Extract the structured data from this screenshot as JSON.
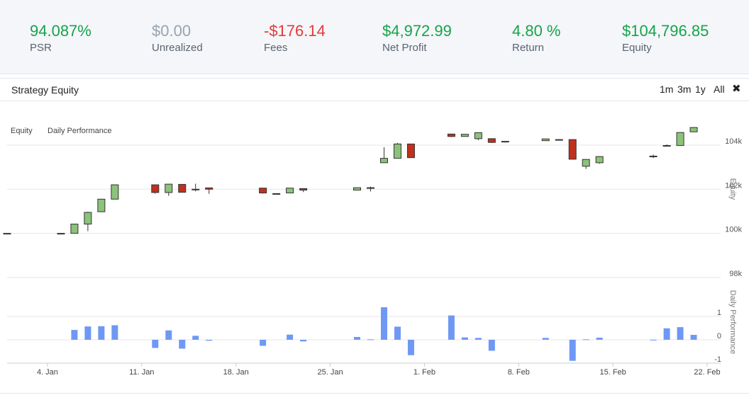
{
  "colors": {
    "positive": "#16a34a",
    "negative": "#e23b3b",
    "neutral": "#9aa3ad",
    "candle_up": "#8cc27a",
    "candle_down": "#c0301e",
    "bar": "#6f98f5"
  },
  "stats": [
    {
      "value": "94.087%",
      "label": "PSR",
      "tone": "positive"
    },
    {
      "value": "$0.00",
      "label": "Unrealized",
      "tone": "neutral"
    },
    {
      "value": "-$176.14",
      "label": "Fees",
      "tone": "negative"
    },
    {
      "value": "$4,972.99",
      "label": "Net Profit",
      "tone": "positive"
    },
    {
      "value": "4.80 %",
      "label": "Return",
      "tone": "positive"
    },
    {
      "value": "$104,796.85",
      "label": "Equity",
      "tone": "positive"
    }
  ],
  "panel": {
    "title": "Strategy Equity",
    "ranges": [
      "1m",
      "3m",
      "1y",
      "All"
    ],
    "close_icon": "close-icon",
    "close_glyph": "✖"
  },
  "chart_data": {
    "type": "candlestick+bar",
    "legend": [
      "Equity",
      "Daily Performance"
    ],
    "x_ticks": [
      "4. Jan",
      "11. Jan",
      "18. Jan",
      "25. Jan",
      "1. Feb",
      "8. Feb",
      "15. Feb",
      "22. Feb"
    ],
    "x_range_days": [
      -3,
      50
    ],
    "equity": {
      "axis_label": "Equity",
      "y_ticks": [
        "98k",
        "100k",
        "102k",
        "104k"
      ],
      "y_tick_values": [
        98000,
        100000,
        102000,
        104000
      ],
      "ylim": [
        98000,
        104800
      ],
      "candles": [
        {
          "d": -3,
          "o": 100000,
          "h": 100000,
          "l": 100000,
          "c": 100000
        },
        {
          "d": 1,
          "o": 100000,
          "h": 100000,
          "l": 100000,
          "c": 100000
        },
        {
          "d": 2,
          "o": 100000,
          "h": 100420,
          "l": 100000,
          "c": 100420
        },
        {
          "d": 3,
          "o": 100420,
          "h": 100980,
          "l": 100100,
          "c": 100950
        },
        {
          "d": 4,
          "o": 100980,
          "h": 101550,
          "l": 100980,
          "c": 101550
        },
        {
          "d": 5,
          "o": 101550,
          "h": 102200,
          "l": 101550,
          "c": 102200
        },
        {
          "d": 8,
          "o": 102200,
          "h": 102200,
          "l": 101800,
          "c": 101850
        },
        {
          "d": 9,
          "o": 101850,
          "h": 102230,
          "l": 101700,
          "c": 102230
        },
        {
          "d": 10,
          "o": 102220,
          "h": 102220,
          "l": 101850,
          "c": 101860
        },
        {
          "d": 11,
          "o": 102000,
          "h": 102250,
          "l": 101900,
          "c": 102000
        },
        {
          "d": 12,
          "o": 102060,
          "h": 102060,
          "l": 101790,
          "c": 102000
        },
        {
          "d": 16,
          "o": 102050,
          "h": 102050,
          "l": 101800,
          "c": 101830
        },
        {
          "d": 17,
          "o": 101800,
          "h": 101800,
          "l": 101780,
          "c": 101790
        },
        {
          "d": 18,
          "o": 101830,
          "h": 102050,
          "l": 101820,
          "c": 102050
        },
        {
          "d": 19,
          "o": 102030,
          "h": 102030,
          "l": 101870,
          "c": 101960
        },
        {
          "d": 23,
          "o": 101960,
          "h": 102070,
          "l": 101960,
          "c": 102070
        },
        {
          "d": 24,
          "o": 102070,
          "h": 102120,
          "l": 101900,
          "c": 102070
        },
        {
          "d": 25,
          "o": 103200,
          "h": 103900,
          "l": 103200,
          "c": 103400
        },
        {
          "d": 26,
          "o": 103400,
          "h": 104100,
          "l": 103400,
          "c": 104050
        },
        {
          "d": 27,
          "o": 104050,
          "h": 104050,
          "l": 103420,
          "c": 103430
        },
        {
          "d": 30,
          "o": 104500,
          "h": 104500,
          "l": 104360,
          "c": 104390
        },
        {
          "d": 31,
          "o": 104390,
          "h": 104490,
          "l": 104390,
          "c": 104490
        },
        {
          "d": 32,
          "o": 104290,
          "h": 104560,
          "l": 104220,
          "c": 104560
        },
        {
          "d": 33,
          "o": 104290,
          "h": 104290,
          "l": 104100,
          "c": 104120
        },
        {
          "d": 34,
          "o": 104170,
          "h": 104170,
          "l": 104120,
          "c": 104150
        },
        {
          "d": 37,
          "o": 104200,
          "h": 104280,
          "l": 104200,
          "c": 104280
        },
        {
          "d": 38,
          "o": 104250,
          "h": 104250,
          "l": 104250,
          "c": 104250
        },
        {
          "d": 39,
          "o": 104250,
          "h": 104250,
          "l": 103350,
          "c": 103360
        },
        {
          "d": 40,
          "o": 103040,
          "h": 103360,
          "l": 102920,
          "c": 103350
        },
        {
          "d": 41,
          "o": 103200,
          "h": 103490,
          "l": 103150,
          "c": 103480
        },
        {
          "d": 45,
          "o": 103500,
          "h": 103570,
          "l": 103410,
          "c": 103500
        },
        {
          "d": 46,
          "o": 103950,
          "h": 104030,
          "l": 103950,
          "c": 103980
        },
        {
          "d": 47,
          "o": 103980,
          "h": 104570,
          "l": 103980,
          "c": 104570
        },
        {
          "d": 48,
          "o": 104600,
          "h": 104797,
          "l": 104600,
          "c": 104797
        }
      ]
    },
    "performance": {
      "axis_label": "Daily Performance",
      "y_ticks": [
        "-1",
        "0",
        "1"
      ],
      "y_tick_values": [
        -1,
        0,
        1
      ],
      "ylim": [
        -1,
        2.3
      ],
      "bars": [
        {
          "d": 2,
          "v": 0.42
        },
        {
          "d": 3,
          "v": 0.57
        },
        {
          "d": 4,
          "v": 0.58
        },
        {
          "d": 5,
          "v": 0.62
        },
        {
          "d": 8,
          "v": -0.35
        },
        {
          "d": 9,
          "v": 0.4
        },
        {
          "d": 10,
          "v": -0.38
        },
        {
          "d": 11,
          "v": 0.17
        },
        {
          "d": 12,
          "v": -0.04
        },
        {
          "d": 16,
          "v": -0.26
        },
        {
          "d": 18,
          "v": 0.22
        },
        {
          "d": 19,
          "v": -0.07
        },
        {
          "d": 23,
          "v": 0.12
        },
        {
          "d": 24,
          "v": 0.02
        },
        {
          "d": 25,
          "v": 1.39
        },
        {
          "d": 26,
          "v": 0.56
        },
        {
          "d": 27,
          "v": -0.66
        },
        {
          "d": 30,
          "v": 1.04
        },
        {
          "d": 31,
          "v": 0.1
        },
        {
          "d": 32,
          "v": 0.08
        },
        {
          "d": 33,
          "v": -0.47
        },
        {
          "d": 37,
          "v": 0.08
        },
        {
          "d": 39,
          "v": -0.9
        },
        {
          "d": 40,
          "v": 0.02
        },
        {
          "d": 41,
          "v": 0.09
        },
        {
          "d": 45,
          "v": -0.01
        },
        {
          "d": 46,
          "v": 0.49
        },
        {
          "d": 47,
          "v": 0.54
        },
        {
          "d": 48,
          "v": 0.21
        }
      ]
    }
  }
}
